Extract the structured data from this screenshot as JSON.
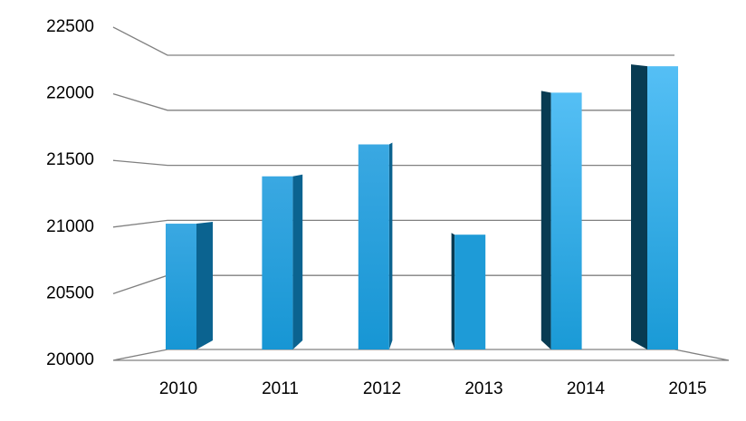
{
  "chart_data": {
    "type": "bar3d",
    "categories": [
      "2010",
      "2011",
      "2012",
      "2013",
      "2014",
      "2015"
    ],
    "values": [
      20970,
      21400,
      21690,
      20870,
      22160,
      22400
    ],
    "color": "#1e9bd7",
    "ylim": [
      20000,
      22500
    ],
    "yticks": [
      20000,
      20500,
      21000,
      21500,
      22000,
      22500
    ],
    "grid": true
  }
}
